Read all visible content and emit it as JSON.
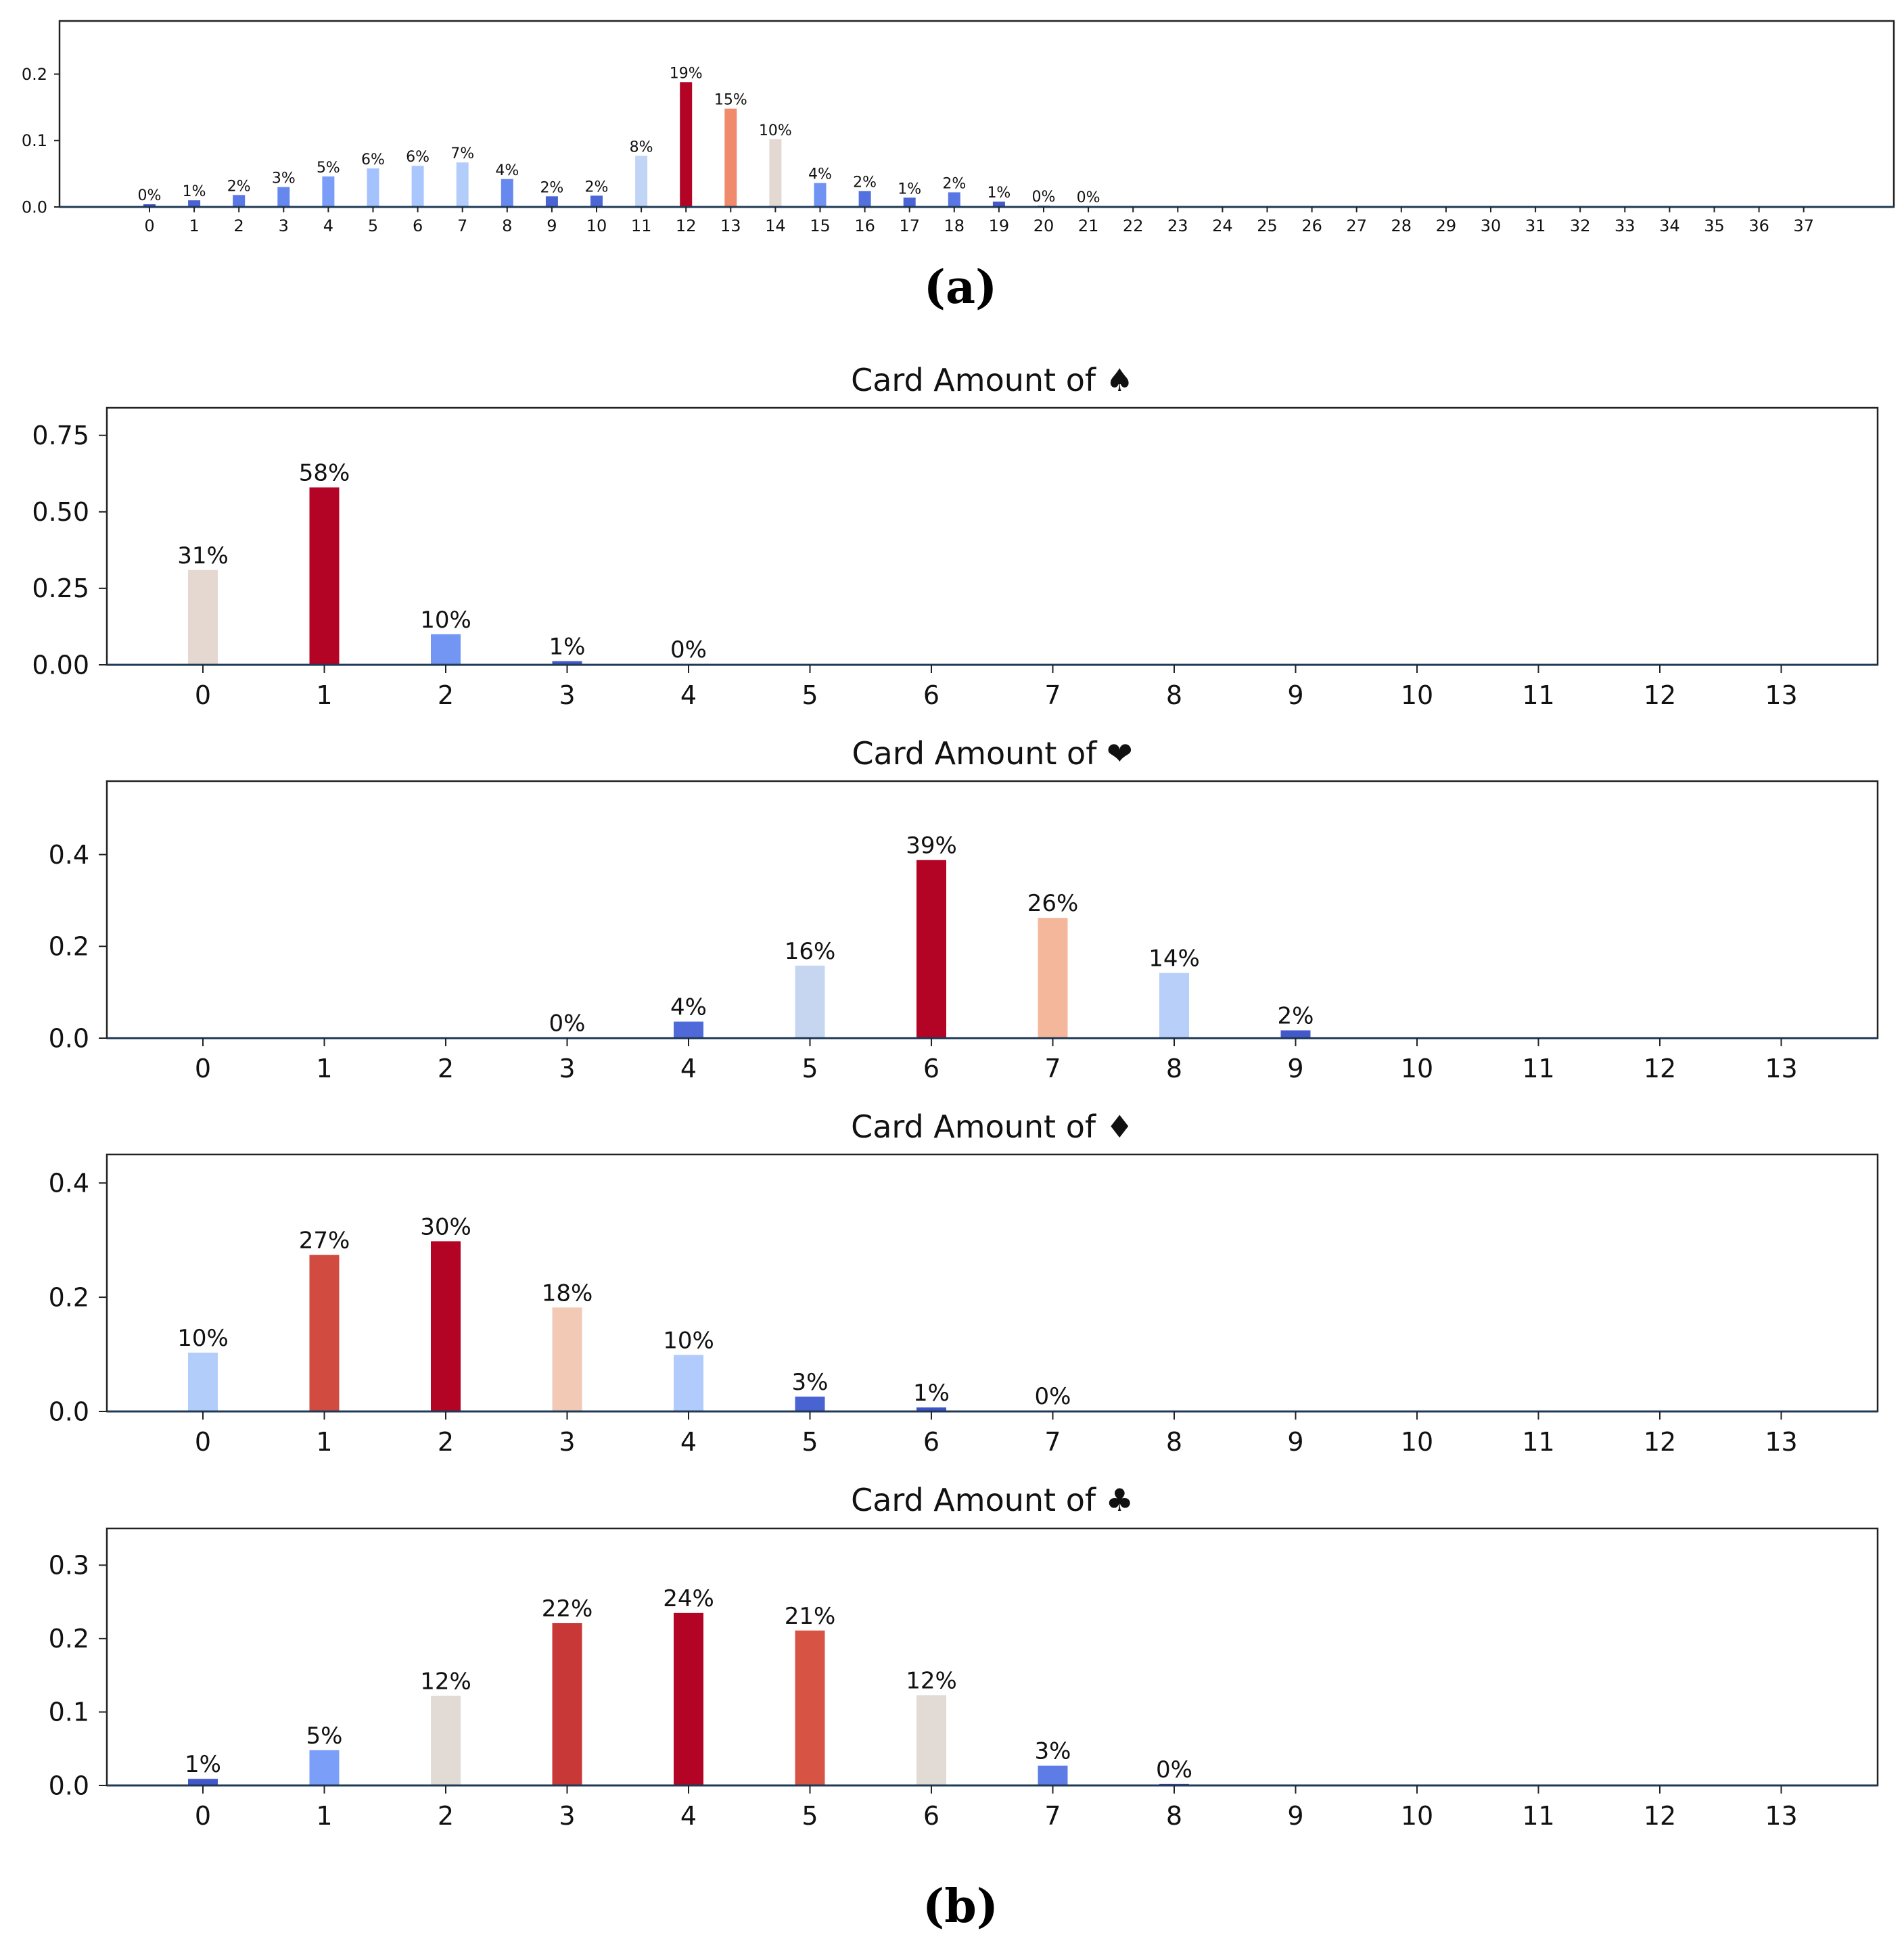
{
  "captions": {
    "a": "(a)",
    "b": "(b)"
  },
  "chart_data": [
    {
      "id": "a",
      "type": "bar",
      "title": "",
      "xlabel": "",
      "ylabel": "",
      "categories": [
        "0",
        "1",
        "2",
        "3",
        "4",
        "5",
        "6",
        "7",
        "8",
        "9",
        "10",
        "11",
        "12",
        "13",
        "14",
        "15",
        "16",
        "17",
        "18",
        "19",
        "20",
        "21",
        "22",
        "23",
        "24",
        "25",
        "26",
        "27",
        "28",
        "29",
        "30",
        "31",
        "32",
        "33",
        "34",
        "35",
        "36",
        "37"
      ],
      "values": [
        0.004,
        0.01,
        0.018,
        0.03,
        0.046,
        0.058,
        0.062,
        0.067,
        0.042,
        0.016,
        0.017,
        0.077,
        0.188,
        0.148,
        0.102,
        0.036,
        0.024,
        0.014,
        0.022,
        0.008,
        0.002,
        0.001,
        0,
        0,
        0,
        0,
        0,
        0,
        0,
        0,
        0,
        0,
        0,
        0,
        0,
        0,
        0,
        0
      ],
      "labels": [
        "0%",
        "1%",
        "2%",
        "3%",
        "5%",
        "6%",
        "6%",
        "7%",
        "4%",
        "2%",
        "2%",
        "8%",
        "19%",
        "15%",
        "10%",
        "4%",
        "2%",
        "1%",
        "2%",
        "1%",
        "0%",
        "0%",
        "",
        "",
        "",
        "",
        "",
        "",
        "",
        "",
        "",
        "",
        "",
        "",
        "",
        "",
        "",
        ""
      ],
      "colors": [
        "#3b4cc0",
        "#4961d2",
        "#5a78e4",
        "#6688ee",
        "#7a9df8",
        "#a3c2fe",
        "#aac7fd",
        "#b3cdfb",
        "#6788ee",
        "#4a63d3",
        "#4c66d6",
        "#c0d4f5",
        "#b40426",
        "#f08a6c",
        "#e4d9d2",
        "#6f92f3",
        "#5470de",
        "#4b64d5",
        "#5977e3",
        "#4358cb",
        "#3d50c3",
        "#3b4cc0",
        "#3b4cc0",
        "#3b4cc0",
        "#3b4cc0",
        "#3b4cc0",
        "#3b4cc0",
        "#3b4cc0",
        "#3b4cc0",
        "#3b4cc0",
        "#3b4cc0",
        "#3b4cc0",
        "#3b4cc0",
        "#3b4cc0",
        "#3b4cc0",
        "#3b4cc0",
        "#3b4cc0",
        "#3b4cc0"
      ],
      "ylim": [
        0,
        0.28
      ],
      "yticks": [
        "0.0",
        "0.1",
        "0.2"
      ],
      "ytick_values": [
        0,
        0.1,
        0.2
      ],
      "grid": false
    },
    {
      "id": "spade",
      "type": "bar",
      "title": "Card Amount of ♠",
      "xlabel": "",
      "ylabel": "",
      "categories": [
        "0",
        "1",
        "2",
        "3",
        "4",
        "5",
        "6",
        "7",
        "8",
        "9",
        "10",
        "11",
        "12",
        "13"
      ],
      "values": [
        0.31,
        0.58,
        0.1,
        0.012,
        0.002,
        0,
        0,
        0,
        0,
        0,
        0,
        0,
        0,
        0
      ],
      "labels": [
        "31%",
        "58%",
        "10%",
        "1%",
        "0%",
        "",
        "",
        "",
        "",
        "",
        "",
        "",
        "",
        ""
      ],
      "colors": [
        "#e5d8d1",
        "#b40426",
        "#7396f5",
        "#4257c9",
        "#3b4cc0",
        "#3b4cc0",
        "#3b4cc0",
        "#3b4cc0",
        "#3b4cc0",
        "#3b4cc0",
        "#3b4cc0",
        "#3b4cc0",
        "#3b4cc0",
        "#3b4cc0"
      ],
      "ylim": [
        0,
        0.84
      ],
      "yticks": [
        "0.00",
        "0.25",
        "0.50",
        "0.75"
      ],
      "ytick_values": [
        0,
        0.25,
        0.5,
        0.75
      ],
      "grid": false
    },
    {
      "id": "heart",
      "type": "bar",
      "title": "Card Amount of ❤",
      "xlabel": "",
      "ylabel": "",
      "categories": [
        "0",
        "1",
        "2",
        "3",
        "4",
        "5",
        "6",
        "7",
        "8",
        "9",
        "10",
        "11",
        "12",
        "13"
      ],
      "values": [
        0,
        0,
        0,
        0.001,
        0.036,
        0.158,
        0.388,
        0.262,
        0.142,
        0.017,
        0,
        0,
        0,
        0
      ],
      "labels": [
        "",
        "",
        "",
        "0%",
        "4%",
        "16%",
        "39%",
        "26%",
        "14%",
        "2%",
        "",
        "",
        "",
        ""
      ],
      "colors": [
        "#3b4cc0",
        "#3b4cc0",
        "#3b4cc0",
        "#3b4cc0",
        "#4f69d9",
        "#c6d6f1",
        "#b40426",
        "#f5b79b",
        "#b7cff9",
        "#4358cb",
        "#3b4cc0",
        "#3b4cc0",
        "#3b4cc0",
        "#3b4cc0"
      ],
      "ylim": [
        0,
        0.56
      ],
      "yticks": [
        "0.0",
        "0.2",
        "0.4"
      ],
      "ytick_values": [
        0,
        0.2,
        0.4
      ],
      "grid": false
    },
    {
      "id": "diamond",
      "type": "bar",
      "title": "Card Amount of ♦",
      "xlabel": "",
      "ylabel": "",
      "categories": [
        "0",
        "1",
        "2",
        "3",
        "4",
        "5",
        "6",
        "7",
        "8",
        "9",
        "10",
        "11",
        "12",
        "13"
      ],
      "values": [
        0.103,
        0.274,
        0.298,
        0.182,
        0.099,
        0.026,
        0.007,
        0.001,
        0,
        0,
        0,
        0,
        0,
        0
      ],
      "labels": [
        "10%",
        "27%",
        "30%",
        "18%",
        "10%",
        "3%",
        "1%",
        "0%",
        "",
        "",
        "",
        "",
        "",
        ""
      ],
      "colors": [
        "#b3cdfb",
        "#d24b40",
        "#b40426",
        "#f2c9b4",
        "#b1cbfc",
        "#4a63d3",
        "#3f53c6",
        "#3b4cc0",
        "#3b4cc0",
        "#3b4cc0",
        "#3b4cc0",
        "#3b4cc0",
        "#3b4cc0",
        "#3b4cc0"
      ],
      "ylim": [
        0,
        0.45
      ],
      "yticks": [
        "0.0",
        "0.2",
        "0.4"
      ],
      "ytick_values": [
        0,
        0.2,
        0.4
      ],
      "grid": false
    },
    {
      "id": "club",
      "type": "bar",
      "title": "Card Amount of ♣",
      "xlabel": "",
      "ylabel": "",
      "categories": [
        "0",
        "1",
        "2",
        "3",
        "4",
        "5",
        "6",
        "7",
        "8",
        "9",
        "10",
        "11",
        "12",
        "13"
      ],
      "values": [
        0.009,
        0.048,
        0.122,
        0.221,
        0.235,
        0.211,
        0.123,
        0.027,
        0.002,
        0,
        0,
        0,
        0,
        0
      ],
      "labels": [
        "1%",
        "5%",
        "12%",
        "22%",
        "24%",
        "21%",
        "12%",
        "3%",
        "0%",
        "",
        "",
        "",
        "",
        ""
      ],
      "colors": [
        "#4257c9",
        "#7b9ff9",
        "#e2dad5",
        "#c83836",
        "#b40426",
        "#d75445",
        "#e2dad5",
        "#5d7ce6",
        "#3b4cc0",
        "#3b4cc0",
        "#3b4cc0",
        "#3b4cc0",
        "#3b4cc0",
        "#3b4cc0"
      ],
      "ylim": [
        0,
        0.35
      ],
      "yticks": [
        "0.0",
        "0.1",
        "0.2",
        "0.3"
      ],
      "ytick_values": [
        0,
        0.1,
        0.2,
        0.3
      ],
      "grid": false
    }
  ]
}
